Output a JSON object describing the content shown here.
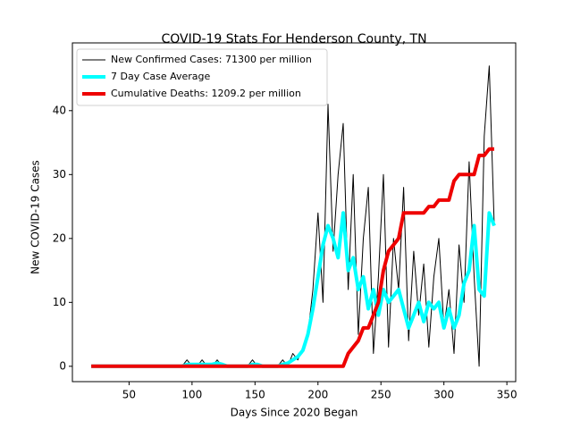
{
  "chart_data": {
    "type": "line",
    "title": "COVID-19 Stats For Henderson County, TN",
    "x_label": "Days Since 2020 Began",
    "y_label": "New COVID-19 Cases",
    "x": [
      20,
      24,
      28,
      32,
      36,
      40,
      44,
      48,
      52,
      56,
      60,
      64,
      68,
      72,
      76,
      80,
      84,
      88,
      92,
      96,
      100,
      104,
      108,
      112,
      116,
      120,
      124,
      128,
      132,
      136,
      140,
      144,
      148,
      152,
      156,
      160,
      164,
      168,
      172,
      176,
      180,
      184,
      188,
      192,
      196,
      200,
      204,
      208,
      212,
      216,
      220,
      224,
      228,
      232,
      236,
      240,
      244,
      248,
      252,
      256,
      260,
      264,
      268,
      272,
      276,
      280,
      284,
      288,
      292,
      296,
      300,
      304,
      308,
      312,
      316,
      320,
      324,
      328,
      332,
      336,
      340
    ],
    "series": [
      {
        "name": "New Confirmed Cases: 71300 per million",
        "color": "#000000",
        "width": 1,
        "values": [
          0,
          0,
          0,
          0,
          0,
          0,
          0,
          0,
          0,
          0,
          0,
          0,
          0,
          0,
          0,
          0,
          0,
          0,
          0,
          1,
          0,
          0,
          1,
          0,
          0,
          1,
          0,
          0,
          0,
          0,
          0,
          0,
          1,
          0,
          0,
          0,
          0,
          0,
          1,
          0,
          2,
          1,
          3,
          5,
          12,
          24,
          10,
          41,
          18,
          30,
          38,
          12,
          30,
          5,
          20,
          28,
          2,
          14,
          30,
          3,
          20,
          12,
          28,
          4,
          18,
          8,
          16,
          3,
          14,
          20,
          6,
          12,
          2,
          19,
          10,
          32,
          14,
          0,
          36,
          47,
          22
        ]
      },
      {
        "name": "7 Day Case Average",
        "color": "#00ffff",
        "width": 4,
        "values": [
          0,
          0,
          0,
          0,
          0,
          0,
          0,
          0,
          0,
          0,
          0,
          0,
          0,
          0,
          0,
          0,
          0,
          0,
          0,
          0.3,
          0.3,
          0.3,
          0.3,
          0.3,
          0.3,
          0.5,
          0.3,
          0,
          0,
          0,
          0,
          0,
          0.3,
          0.3,
          0,
          0,
          0,
          0,
          0.3,
          0.5,
          1,
          1.5,
          2.5,
          5,
          9,
          14,
          19,
          22,
          20,
          17,
          24,
          15,
          17,
          12,
          14,
          9,
          12,
          8,
          12,
          10,
          11,
          12,
          9,
          6,
          8,
          10,
          7,
          10,
          9,
          10,
          6,
          9,
          6,
          8,
          13,
          15,
          22,
          12,
          11,
          24,
          22
        ]
      },
      {
        "name": "Cumulative Deaths: 1209.2 per million",
        "color": "#ee0000",
        "width": 4,
        "values": [
          0,
          0,
          0,
          0,
          0,
          0,
          0,
          0,
          0,
          0,
          0,
          0,
          0,
          0,
          0,
          0,
          0,
          0,
          0,
          0,
          0,
          0,
          0,
          0,
          0,
          0,
          0,
          0,
          0,
          0,
          0,
          0,
          0,
          0,
          0,
          0,
          0,
          0,
          0,
          0,
          0,
          0,
          0,
          0,
          0,
          0,
          0,
          0,
          0,
          0,
          0,
          2,
          3,
          4,
          6,
          6,
          8,
          10,
          15,
          18,
          19,
          20,
          24,
          24,
          24,
          24,
          24,
          25,
          25,
          26,
          26,
          26,
          29,
          30,
          30,
          30,
          30,
          33,
          33,
          34,
          34
        ]
      }
    ],
    "xlim": [
      5,
      357
    ],
    "ylim": [
      -2.4,
      50.6
    ],
    "xticks": [
      50,
      100,
      150,
      200,
      250,
      300,
      350
    ],
    "yticks": [
      0,
      10,
      20,
      30,
      40
    ],
    "legend": "upper left"
  }
}
